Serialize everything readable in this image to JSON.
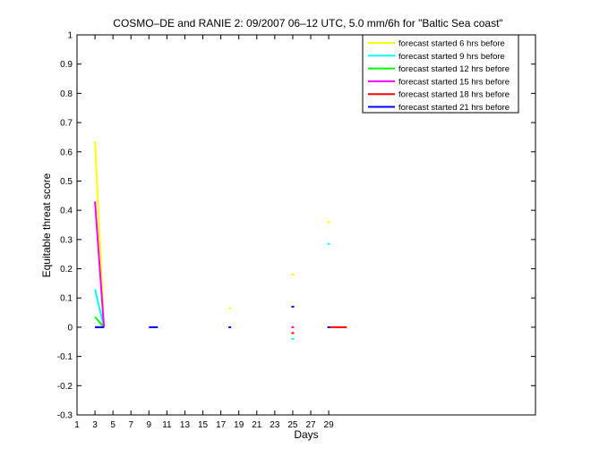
{
  "chart_data": {
    "type": "line",
    "title": "COSMO–DE and RANIE 2: 09/2007 06–12 UTC, 5.0 mm/6h for \"Baltic Sea coast\"",
    "xlabel": "Days",
    "ylabel": "Equitable threat score",
    "xlim": [
      1,
      52
    ],
    "ylim": [
      -0.3,
      1
    ],
    "xticks": [
      1,
      3,
      5,
      7,
      9,
      11,
      13,
      15,
      17,
      19,
      21,
      23,
      25,
      27,
      29
    ],
    "yticks": [
      -0.3,
      -0.2,
      -0.1,
      0,
      0.1,
      0.2,
      0.3,
      0.4,
      0.5,
      0.6,
      0.7,
      0.8,
      0.9,
      1
    ],
    "legend_position": "top-right",
    "grid": false,
    "series": [
      {
        "name": "forecast started 6 hrs before",
        "color": "#ffff00",
        "segments": [
          [
            [
              3,
              0.635
            ],
            [
              4,
              0.0
            ]
          ],
          [
            [
              3,
              0.0
            ],
            [
              4,
              0.0
            ]
          ],
          [
            [
              18,
              0.065
            ]
          ],
          [
            [
              25,
              0.18
            ]
          ],
          [
            [
              29,
              0.36
            ]
          ]
        ]
      },
      {
        "name": "forecast started 9 hrs before",
        "color": "#00ffff",
        "segments": [
          [
            [
              3,
              0.13
            ],
            [
              4,
              0.0
            ]
          ],
          [
            [
              3,
              0.0
            ],
            [
              4,
              0.0
            ]
          ],
          [
            [
              25,
              -0.04
            ]
          ],
          [
            [
              29,
              0.285
            ]
          ]
        ]
      },
      {
        "name": "forecast started 12 hrs before",
        "color": "#00ff00",
        "segments": [
          [
            [
              3,
              0.035
            ],
            [
              4,
              0.0
            ]
          ],
          [
            [
              3,
              0.0
            ],
            [
              4,
              0.0
            ]
          ]
        ]
      },
      {
        "name": "forecast started 15 hrs before",
        "color": "#ff00ff",
        "segments": [
          [
            [
              3,
              0.43
            ],
            [
              4,
              0.0
            ]
          ],
          [
            [
              3,
              0.0
            ],
            [
              4,
              0.0
            ]
          ],
          [
            [
              25,
              0.0
            ]
          ]
        ]
      },
      {
        "name": "forecast started 18 hrs before",
        "color": "#ff0000",
        "segments": [
          [
            [
              25,
              -0.02
            ]
          ],
          [
            [
              29,
              0.0
            ],
            [
              31,
              0.0
            ]
          ]
        ]
      },
      {
        "name": "forecast started 21 hrs before",
        "color": "#0000ff",
        "segments": [
          [
            [
              3,
              0.0
            ],
            [
              4,
              0.0
            ]
          ],
          [
            [
              9,
              0.0
            ],
            [
              10,
              0.0
            ]
          ],
          [
            [
              18,
              0.0
            ]
          ],
          [
            [
              25,
              0.07
            ]
          ],
          [
            [
              29,
              0.0
            ]
          ]
        ]
      }
    ]
  }
}
